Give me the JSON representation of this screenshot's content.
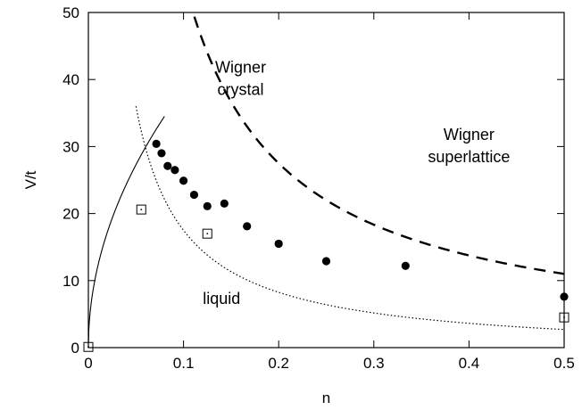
{
  "chart_data": {
    "type": "scatter",
    "xlabel": "n",
    "ylabel": "V/t",
    "xlim": [
      0,
      0.5
    ],
    "ylim": [
      0,
      50
    ],
    "x_ticks": [
      "0",
      "0.1",
      "0.2",
      "0.3",
      "0.4",
      "0.5"
    ],
    "y_ticks": [
      "0",
      "10",
      "20",
      "30",
      "40",
      "50"
    ],
    "x_tick_values": [
      0,
      0.1,
      0.2,
      0.3,
      0.4,
      0.5
    ],
    "y_tick_values": [
      0,
      10,
      20,
      30,
      40,
      50
    ],
    "grid": false,
    "legend": "none",
    "region_labels": [
      {
        "text": [
          "Wigner",
          "crystal"
        ],
        "x": 0.16,
        "y": 41
      },
      {
        "text": [
          "Wigner",
          "superlattice"
        ],
        "x": 0.4,
        "y": 31
      },
      {
        "text": [
          "liquid"
        ],
        "x": 0.14,
        "y": 6.5
      }
    ],
    "series": [
      {
        "marker": "filled-circle",
        "color": "#000000",
        "x": [
          0.0714,
          0.0769,
          0.0833,
          0.0909,
          0.1,
          0.1111,
          0.125,
          0.1429,
          0.1667,
          0.2,
          0.25,
          0.3333,
          0.5
        ],
        "y": [
          30.4,
          29.0,
          27.1,
          26.5,
          24.9,
          22.8,
          21.1,
          21.5,
          18.1,
          15.5,
          12.9,
          12.2,
          7.6
        ]
      },
      {
        "marker": "open-square",
        "color": "#000000",
        "x": [
          0.0,
          0.0556,
          0.125,
          0.5
        ],
        "y": [
          0.1,
          20.6,
          17.0,
          4.5
        ]
      },
      {
        "line": "solid",
        "color": "#000000",
        "function": "122*sqrt(n)",
        "x_range": [
          0,
          0.08
        ]
      },
      {
        "line": "dotted",
        "color": "#000000",
        "function": "1.85/n",
        "x_range": [
          0.05,
          0.5
        ],
        "offset": -1.0
      },
      {
        "line": "dashed",
        "color": "#000000",
        "function": "5.5/n",
        "x_range": [
          0.1,
          0.5
        ]
      }
    ]
  }
}
